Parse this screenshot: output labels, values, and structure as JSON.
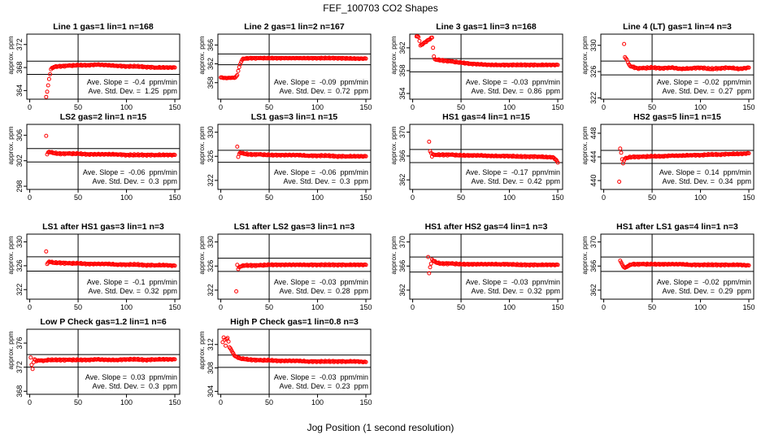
{
  "figure": {
    "title": "FEF_100703  CO2 Shapes",
    "xlabel": "Jog Position (1 second resolution)"
  },
  "chart_data": [
    {
      "type": "scatter",
      "title": "Line 1 gas=1 lin=1 n=168",
      "ylabel": "approx. ppm",
      "xlim": [
        -3,
        155
      ],
      "ylim": [
        362.5,
        373.8
      ],
      "xticks": [
        0,
        50,
        100,
        150
      ],
      "yticks": [
        364,
        368,
        372
      ],
      "hlines": [
        369.1,
        366.8
      ],
      "vline": 50,
      "color": "#ff0000",
      "ann1": "Ave. Slope =  -0.4  ppm/min",
      "ann2": "Ave. Std. Dev. =  1.25  ppm",
      "x": [
        17,
        18,
        19,
        20,
        22,
        25,
        30,
        40,
        50,
        60,
        70,
        80,
        90,
        100,
        110,
        120,
        130,
        140,
        150
      ],
      "y": [
        362.9,
        363.8,
        364.9,
        366.0,
        367.7,
        368.1,
        368.2,
        368.3,
        368.4,
        368.4,
        368.5,
        368.4,
        368.3,
        368.2,
        368.2,
        368.1,
        368.0,
        368.0,
        368.0
      ]
    },
    {
      "type": "scatter",
      "title": "Line 2 gas=1 lin=2 n=167",
      "ylabel": "approx. ppm",
      "xlim": [
        -3,
        155
      ],
      "ylim": [
        354.5,
        368.3
      ],
      "xticks": [
        0,
        50,
        100,
        150
      ],
      "yticks": [
        358,
        362,
        366
      ],
      "hlines": [
        364.1,
        361.8
      ],
      "vline": 50,
      "color": "#ff0000",
      "ann1": "Ave. Slope =  -0.09  ppm/min",
      "ann2": "Ave. Std. Dev. =  0.72  ppm",
      "x": [
        0,
        5,
        10,
        15,
        17,
        18,
        19,
        20,
        21,
        22,
        23,
        25,
        30,
        40,
        60,
        80,
        100,
        120,
        140,
        150
      ],
      "y": [
        359.1,
        359.0,
        359.0,
        359.1,
        359.6,
        360.5,
        361.3,
        361.9,
        362.4,
        362.8,
        363.1,
        363.1,
        363.2,
        363.2,
        363.2,
        363.2,
        363.2,
        363.2,
        363.1,
        363.1
      ]
    },
    {
      "type": "scatter",
      "title": "Line 3 gas=1 lin=3 n=168",
      "ylabel": "approx. ppm",
      "xlim": [
        -3,
        155
      ],
      "ylim": [
        353,
        364.4
      ],
      "xticks": [
        0,
        50,
        100,
        150
      ],
      "yticks": [
        354,
        358,
        362
      ],
      "hlines": [
        360.1,
        357.8
      ],
      "vline": 50,
      "color": "#ff0000",
      "ann1": "Ave. Slope =  -0.03  ppm/min",
      "ann2": "Ave. Std. Dev. =  0.86  ppm",
      "x": [
        4,
        6,
        7,
        8,
        20,
        21,
        22,
        23,
        25,
        30,
        40,
        50,
        60,
        70,
        80,
        90,
        100,
        110,
        120,
        130,
        140,
        150
      ],
      "y": [
        364.0,
        363.9,
        363.2,
        362.4,
        363.8,
        362.0,
        360.5,
        360.0,
        359.9,
        359.8,
        359.6,
        359.4,
        359.2,
        359.1,
        359.0,
        359.0,
        359.0,
        359.0,
        359.0,
        359.0,
        359.0,
        359.0
      ]
    },
    {
      "type": "scatter",
      "title": "Line 4 (LT) gas=1 lin=4 n=3",
      "ylabel": "approx. ppm",
      "xlim": [
        -3,
        155
      ],
      "ylim": [
        321.8,
        331.7
      ],
      "xticks": [
        0,
        50,
        100,
        150
      ],
      "yticks": [
        322,
        326,
        330
      ],
      "hlines": [
        327.6,
        325.5
      ],
      "vline": 50,
      "color": "#ff0000",
      "ann1": "Ave. Slope =  -0.02  ppm/min",
      "ann2": "Ave. Std. Dev. =  0.27  ppm",
      "x": [
        21,
        22,
        23,
        24,
        25,
        27,
        30,
        35,
        40,
        50,
        60,
        70,
        80,
        90,
        100,
        110,
        120,
        130,
        140,
        150
      ],
      "y": [
        330.2,
        328.2,
        328.0,
        327.8,
        327.4,
        326.9,
        326.7,
        326.5,
        326.5,
        326.6,
        326.5,
        326.6,
        326.4,
        326.5,
        326.6,
        326.4,
        326.5,
        326.6,
        326.4,
        326.6
      ]
    },
    {
      "type": "scatter",
      "title": "LS2 gas=2 lin=1 n=15",
      "ylabel": "approx. ppm",
      "xlim": [
        -3,
        155
      ],
      "ylim": [
        297.5,
        307.7
      ],
      "xticks": [
        0,
        50,
        100,
        150
      ],
      "yticks": [
        298,
        302,
        306
      ],
      "hlines": [
        303.9,
        301.8
      ],
      "vline": 50,
      "color": "#ff0000",
      "ann1": "Ave. Slope =  -0.06  ppm/min",
      "ann2": "Ave. Std. Dev. =  0.3  ppm",
      "x": [
        17,
        18,
        19,
        20,
        22,
        25,
        30,
        40,
        50,
        60,
        70,
        80,
        90,
        100,
        110,
        120,
        130,
        140,
        150
      ],
      "y": [
        305.9,
        303.0,
        303.3,
        303.4,
        303.3,
        303.2,
        303.1,
        303.1,
        303.1,
        303.0,
        303.0,
        303.0,
        303.0,
        302.9,
        302.9,
        302.9,
        302.9,
        302.9,
        302.9
      ]
    },
    {
      "type": "scatter",
      "title": "LS1 gas=3 lin=1 n=15",
      "ylabel": "approx. ppm",
      "xlim": [
        -3,
        155
      ],
      "ylim": [
        320.5,
        331.3
      ],
      "xticks": [
        0,
        50,
        100,
        150
      ],
      "yticks": [
        322,
        326,
        330
      ],
      "hlines": [
        327.0,
        325.0
      ],
      "vline": 50,
      "color": "#ff0000",
      "ann1": "Ave. Slope =  -0.06  ppm/min",
      "ann2": "Ave. Std. Dev. =  0.3  ppm",
      "x": [
        17,
        18,
        19,
        20,
        22,
        25,
        30,
        40,
        50,
        60,
        70,
        80,
        90,
        100,
        110,
        120,
        130,
        140,
        150
      ],
      "y": [
        327.6,
        325.9,
        326.4,
        326.6,
        326.5,
        326.4,
        326.3,
        326.3,
        326.2,
        326.2,
        326.2,
        326.2,
        326.1,
        326.1,
        326.1,
        326.0,
        326.0,
        326.0,
        326.0
      ]
    },
    {
      "type": "scatter",
      "title": "HS1 gas=4 lin=1 n=15",
      "ylabel": "approx. ppm",
      "xlim": [
        -3,
        155
      ],
      "ylim": [
        360.4,
        371.3
      ],
      "xticks": [
        0,
        50,
        100,
        150
      ],
      "yticks": [
        362,
        366,
        370
      ],
      "hlines": [
        367.1,
        364.9
      ],
      "vline": 50,
      "color": "#ff0000",
      "ann1": "Ave. Slope =  -0.17  ppm/min",
      "ann2": "Ave. Std. Dev. =  0.42  ppm",
      "x": [
        17,
        18,
        19,
        20,
        21,
        23,
        25,
        30,
        40,
        50,
        60,
        70,
        80,
        90,
        100,
        110,
        120,
        130,
        140,
        145,
        148,
        150
      ],
      "y": [
        368.4,
        366.8,
        366.5,
        365.9,
        366.3,
        366.2,
        366.2,
        366.2,
        366.2,
        366.1,
        366.1,
        366.1,
        366.0,
        366.0,
        366.0,
        365.9,
        365.9,
        365.9,
        365.8,
        365.8,
        365.4,
        364.9
      ]
    },
    {
      "type": "scatter",
      "title": "HS2 gas=5 lin=1 n=15",
      "ylabel": "approx. ppm",
      "xlim": [
        -3,
        155
      ],
      "ylim": [
        438.5,
        449.5
      ],
      "xticks": [
        0,
        50,
        100,
        150
      ],
      "yticks": [
        440,
        444,
        448
      ],
      "hlines": [
        445.1,
        442.9
      ],
      "vline": 50,
      "color": "#ff0000",
      "ann1": "Ave. Slope =  0.14  ppm/min",
      "ann2": "Ave. Std. Dev. =  0.34  ppm",
      "x": [
        16,
        17,
        18,
        19,
        20,
        21,
        22,
        24,
        26,
        30,
        40,
        50,
        60,
        70,
        80,
        90,
        100,
        110,
        120,
        130,
        140,
        150
      ],
      "y": [
        439.8,
        445.4,
        444.7,
        443.6,
        442.9,
        443.4,
        443.7,
        443.8,
        443.9,
        444.0,
        444.0,
        444.1,
        444.1,
        444.2,
        444.2,
        444.3,
        444.3,
        444.4,
        444.4,
        444.5,
        444.5,
        444.6
      ]
    },
    {
      "type": "scatter",
      "title": "LS1 after HS1 gas=3 lin=1 n=3",
      "ylabel": "approx. ppm",
      "xlim": [
        -3,
        155
      ],
      "ylim": [
        320.4,
        331.3
      ],
      "xticks": [
        0,
        50,
        100,
        150
      ],
      "yticks": [
        322,
        326,
        330
      ],
      "hlines": [
        327.5,
        325.1
      ],
      "vline": 50,
      "color": "#ff0000",
      "ann1": "Ave. Slope =  -0.1  ppm/min",
      "ann2": "Ave. Std. Dev. =  0.32  ppm",
      "x": [
        17,
        18,
        19,
        20,
        22,
        25,
        30,
        40,
        50,
        60,
        70,
        80,
        90,
        100,
        110,
        120,
        130,
        140,
        150
      ],
      "y": [
        328.4,
        326.3,
        326.5,
        326.7,
        326.6,
        326.5,
        326.5,
        326.4,
        326.4,
        326.3,
        326.3,
        326.3,
        326.2,
        326.2,
        326.2,
        326.1,
        326.1,
        326.1,
        326.0
      ]
    },
    {
      "type": "scatter",
      "title": "LS1 after LS2 gas=3 lin=1 n=3",
      "ylabel": "approx. ppm",
      "xlim": [
        -3,
        155
      ],
      "ylim": [
        320.5,
        331.3
      ],
      "xticks": [
        0,
        50,
        100,
        150
      ],
      "yticks": [
        322,
        326,
        330
      ],
      "hlines": [
        327.3,
        325.1
      ],
      "vline": 50,
      "color": "#ff0000",
      "ann1": "Ave. Slope =  -0.03  ppm/min",
      "ann2": "Ave. Std. Dev. =  0.28  ppm",
      "x": [
        16,
        17,
        18,
        19,
        20,
        22,
        25,
        30,
        40,
        50,
        60,
        70,
        80,
        90,
        100,
        110,
        120,
        130,
        140,
        150
      ],
      "y": [
        321.8,
        326.2,
        325.5,
        325.8,
        325.9,
        326.0,
        326.1,
        326.1,
        326.1,
        326.2,
        326.2,
        326.2,
        326.2,
        326.2,
        326.2,
        326.2,
        326.2,
        326.2,
        326.2,
        326.2
      ]
    },
    {
      "type": "scatter",
      "title": "HS1 after HS2 gas=4 lin=1 n=3",
      "ylabel": "approx. ppm",
      "xlim": [
        -3,
        155
      ],
      "ylim": [
        360.5,
        371.3
      ],
      "xticks": [
        0,
        50,
        100,
        150
      ],
      "yticks": [
        362,
        366,
        370
      ],
      "hlines": [
        367.5,
        365.0
      ],
      "vline": 50,
      "color": "#ff0000",
      "ann1": "Ave. Slope =  -0.03  ppm/min",
      "ann2": "Ave. Std. Dev. =  0.32  ppm",
      "x": [
        16,
        17,
        18,
        19,
        20,
        21,
        22,
        24,
        26,
        30,
        40,
        50,
        60,
        70,
        80,
        90,
        100,
        110,
        120,
        130,
        140,
        150
      ],
      "y": [
        367.5,
        364.8,
        365.8,
        366.4,
        367.1,
        366.9,
        366.8,
        366.6,
        366.5,
        366.4,
        366.4,
        366.3,
        366.3,
        366.3,
        366.3,
        366.3,
        366.3,
        366.2,
        366.2,
        366.2,
        366.2,
        366.2
      ]
    },
    {
      "type": "scatter",
      "title": "HS1 after LS1 gas=4 lin=1 n=3",
      "ylabel": "approx. ppm",
      "xlim": [
        -3,
        155
      ],
      "ylim": [
        360.5,
        371.3
      ],
      "xticks": [
        0,
        50,
        100,
        150
      ],
      "yticks": [
        362,
        366,
        370
      ],
      "hlines": [
        367.5,
        365.1
      ],
      "vline": 50,
      "color": "#ff0000",
      "ann1": "Ave. Slope =  -0.02  ppm/min",
      "ann2": "Ave. Std. Dev. =  0.29  ppm",
      "x": [
        17,
        18,
        19,
        20,
        21,
        22,
        23,
        25,
        28,
        30,
        40,
        50,
        60,
        70,
        80,
        90,
        100,
        110,
        120,
        130,
        140,
        150
      ],
      "y": [
        366.9,
        366.6,
        366.3,
        366.0,
        365.8,
        365.7,
        365.8,
        366.0,
        366.2,
        366.3,
        366.3,
        366.3,
        366.3,
        366.3,
        366.3,
        366.2,
        366.2,
        366.2,
        366.2,
        366.2,
        366.2,
        366.1
      ]
    },
    {
      "type": "scatter",
      "title": "Low P Check gas=1.2 lin=1 n=6",
      "ylabel": "approx. ppm",
      "xlim": [
        -3,
        155
      ],
      "ylim": [
        367.5,
        378.3
      ],
      "xticks": [
        0,
        50,
        100,
        150
      ],
      "yticks": [
        368,
        372,
        376
      ],
      "hlines": [
        374.1,
        372.0
      ],
      "vline": 50,
      "color": "#ff0000",
      "ann1": "Ave. Slope =  0.03  ppm/min",
      "ann2": "Ave. Std. Dev. =  0.3  ppm",
      "x": [
        1,
        2,
        3,
        4,
        5,
        6,
        7,
        8,
        10,
        15,
        20,
        30,
        40,
        50,
        60,
        70,
        80,
        90,
        100,
        110,
        120,
        130,
        140,
        150
      ],
      "y": [
        373.6,
        372.4,
        371.7,
        372.8,
        373.3,
        373.2,
        373.0,
        373.1,
        373.1,
        373.1,
        373.2,
        373.2,
        373.2,
        373.2,
        373.2,
        373.3,
        373.2,
        373.2,
        373.3,
        373.3,
        373.2,
        373.3,
        373.3,
        373.3
      ]
    },
    {
      "type": "scatter",
      "title": "High P Check gas=1 lin=0.8 n=3",
      "ylabel": "approx. ppm",
      "xlim": [
        -3,
        155
      ],
      "ylim": [
        303.5,
        314.6
      ],
      "xticks": [
        0,
        50,
        100,
        150
      ],
      "yticks": [
        304,
        308,
        312
      ],
      "hlines": [
        310.2,
        308.1
      ],
      "vline": 50,
      "color": "#ff0000",
      "ann1": "Ave. Slope =  -0.03  ppm/min",
      "ann2": "Ave. Std. Dev. =  0.23  ppm",
      "x": [
        2,
        3,
        4,
        5,
        6,
        7,
        8,
        9,
        10,
        12,
        15,
        20,
        25,
        30,
        40,
        50,
        60,
        70,
        80,
        90,
        100,
        110,
        120,
        130,
        140,
        150
      ],
      "y": [
        312.4,
        313.2,
        312.8,
        311.8,
        312.9,
        313.1,
        312.5,
        311.5,
        311.3,
        310.7,
        310.0,
        309.6,
        309.5,
        309.4,
        309.3,
        309.3,
        309.2,
        309.2,
        309.2,
        309.1,
        309.1,
        309.1,
        309.1,
        309.1,
        309.1,
        309.0
      ]
    }
  ]
}
